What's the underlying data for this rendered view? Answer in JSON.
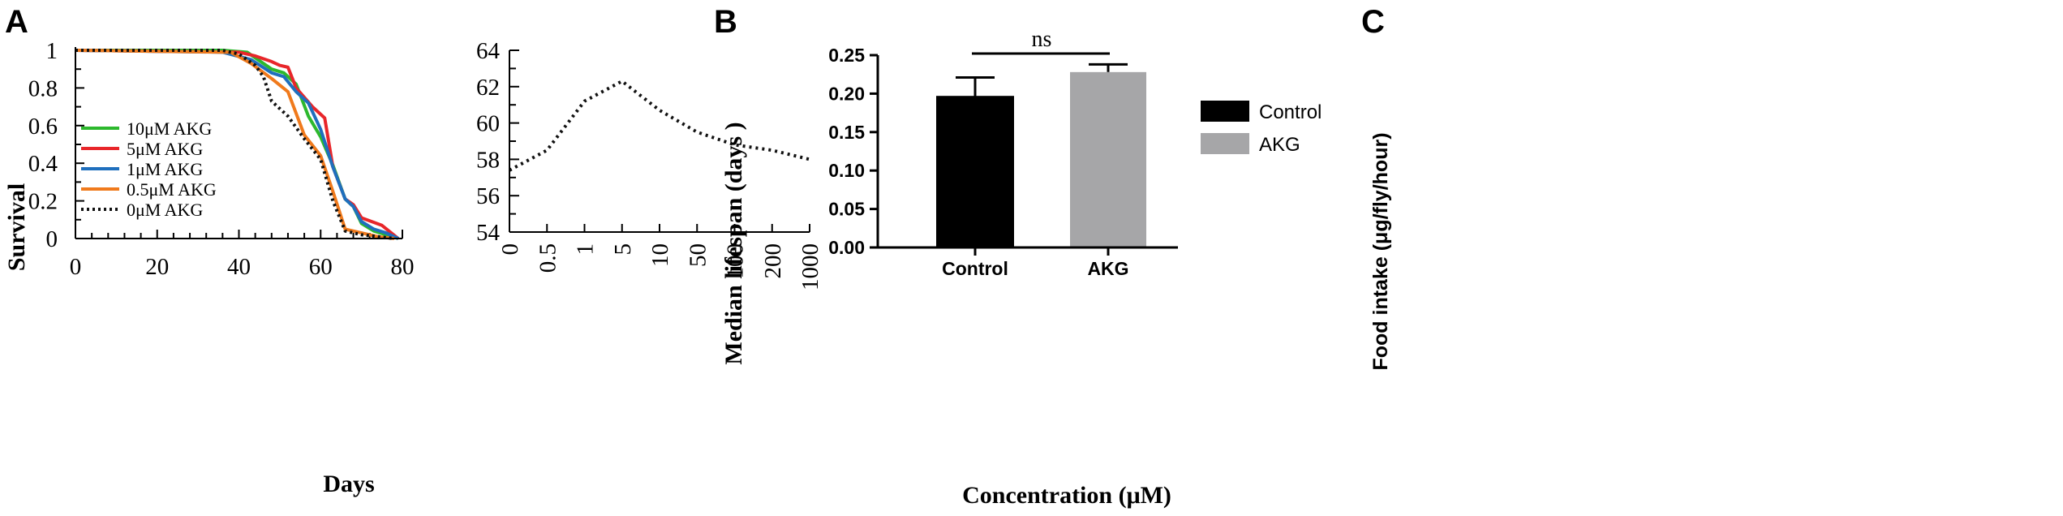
{
  "chart_data": [
    {
      "panel": "A",
      "type": "line",
      "xlabel": "Days",
      "ylabel": "Survival",
      "xlim": [
        0,
        80
      ],
      "ylim": [
        0,
        1
      ],
      "x_ticks": [
        0,
        20,
        40,
        60,
        80
      ],
      "y_ticks": [
        0,
        0.2,
        0.4,
        0.6,
        0.8,
        1
      ],
      "y_tick_labels": [
        "0",
        "0.2",
        "0.4",
        "0.6",
        "0.8",
        "1"
      ],
      "legend_position": "center-left",
      "series": [
        {
          "name": "10μM AKG",
          "color": "#2db82d",
          "dash": "solid",
          "x": [
            0,
            36,
            42,
            48,
            51,
            54,
            57,
            60,
            63,
            66,
            68,
            70,
            73,
            76,
            79
          ],
          "y": [
            1,
            1,
            0.99,
            0.9,
            0.88,
            0.82,
            0.65,
            0.54,
            0.39,
            0.21,
            0.17,
            0.08,
            0.04,
            0.02,
            0
          ]
        },
        {
          "name": "5μM AKG",
          "color": "#e8262a",
          "dash": "solid",
          "x": [
            0,
            40,
            44,
            48,
            50,
            52,
            54,
            58,
            61,
            63,
            66,
            68,
            70,
            75,
            79
          ],
          "y": [
            1,
            0.99,
            0.97,
            0.94,
            0.92,
            0.91,
            0.8,
            0.7,
            0.64,
            0.38,
            0.21,
            0.18,
            0.11,
            0.07,
            0
          ]
        },
        {
          "name": "1μM AKG",
          "color": "#1f6fbd",
          "dash": "solid",
          "x": [
            0,
            36,
            43,
            48,
            51,
            54,
            57,
            60,
            63,
            66,
            68,
            70,
            73,
            76,
            79
          ],
          "y": [
            1,
            0.99,
            0.95,
            0.88,
            0.86,
            0.78,
            0.72,
            0.58,
            0.38,
            0.21,
            0.17,
            0.09,
            0.05,
            0.03,
            0
          ]
        },
        {
          "name": "0.5μM AKG",
          "color": "#f07a1c",
          "dash": "solid",
          "x": [
            0,
            38,
            43,
            48,
            52,
            56,
            60,
            63,
            66,
            70,
            74,
            78
          ],
          "y": [
            1,
            0.99,
            0.93,
            0.85,
            0.78,
            0.55,
            0.44,
            0.25,
            0.05,
            0.03,
            0.01,
            0
          ]
        },
        {
          "name": "0μM AKG",
          "color": "#111111",
          "dash": "dotted",
          "x": [
            0,
            36,
            40,
            44,
            46,
            48,
            52,
            56,
            60,
            63,
            66,
            70,
            74,
            78
          ],
          "y": [
            1,
            1,
            0.98,
            0.92,
            0.86,
            0.73,
            0.65,
            0.53,
            0.42,
            0.2,
            0.04,
            0.02,
            0.01,
            0
          ]
        }
      ]
    },
    {
      "panel": "B",
      "type": "line",
      "xlabel": "Concentration (μM)",
      "ylabel": "Median lifespan (days )",
      "categories": [
        "0",
        "0.5",
        "1",
        "5",
        "10",
        "50",
        "100",
        "200",
        "1000"
      ],
      "ylim": [
        54,
        64
      ],
      "y_ticks": [
        54,
        56,
        58,
        60,
        62,
        64
      ],
      "y_minor_step": 1,
      "series": [
        {
          "color": "#111111",
          "dash": "dotted",
          "values": [
            57.4,
            58.5,
            61.2,
            62.3,
            60.7,
            59.5,
            58.8,
            58.5,
            58.0
          ]
        }
      ]
    },
    {
      "panel": "C",
      "type": "bar",
      "xlabel": "",
      "ylabel": "Food intake (μg/fly/hour)",
      "categories": [
        "Control",
        "AKG"
      ],
      "values": [
        0.196,
        0.228
      ],
      "errors": [
        0.025,
        0.01
      ],
      "colors": [
        "#000000",
        "#a6a6a8"
      ],
      "ylim": [
        0,
        0.25
      ],
      "y_ticks": [
        0,
        0.05,
        0.1,
        0.15,
        0.2,
        0.25
      ],
      "y_tick_labels": [
        "0.00",
        "0.05",
        "0.10",
        "0.15",
        "0.20",
        "0.25"
      ],
      "significance": "ns",
      "legend_position": "right",
      "legend": [
        {
          "name": "Control",
          "color": "#000000"
        },
        {
          "name": "AKG",
          "color": "#a6a6a8"
        }
      ]
    }
  ],
  "panel_labels": [
    "A",
    "B",
    "C"
  ]
}
